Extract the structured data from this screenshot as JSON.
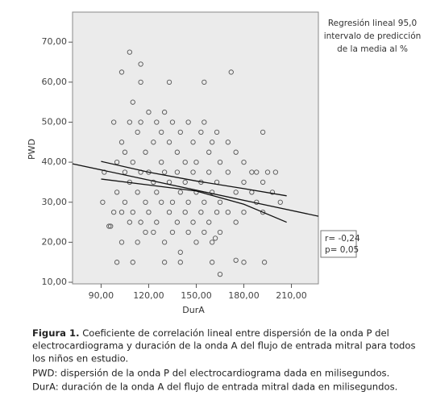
{
  "chart_data": {
    "type": "scatter",
    "xlabel": "DurA",
    "ylabel": "PWD",
    "xlim": [
      72,
      227
    ],
    "ylim": [
      9.6,
      77.5
    ],
    "xticks": [
      {
        "value": 90,
        "label": "90,00"
      },
      {
        "value": 120,
        "label": "120,00"
      },
      {
        "value": 150,
        "label": "150,00"
      },
      {
        "value": 180,
        "label": "180,00"
      },
      {
        "value": 210,
        "label": "210,00"
      }
    ],
    "yticks": [
      {
        "value": 10,
        "label": "10,00"
      },
      {
        "value": 20,
        "label": "20,00"
      },
      {
        "value": 30,
        "label": "30,00"
      },
      {
        "value": 40,
        "label": "40,00"
      },
      {
        "value": 50,
        "label": "50,00"
      },
      {
        "value": 60,
        "label": "60,00"
      },
      {
        "value": 70,
        "label": "70,00"
      }
    ],
    "legend_lines": [
      "Regresión lineal 95,0",
      "intervalo de predicción",
      "de la media al %"
    ],
    "annotation_lines": [
      "r= -0,24",
      "p= 0,05"
    ],
    "background": "#ebebeb",
    "series": [
      {
        "type": "scatter",
        "color": "#555555",
        "x": [
          108,
          115,
          115,
          103,
          133,
          155,
          172,
          192,
          180,
          193,
          165,
          175,
          162,
          160,
          130,
          140,
          100,
          110,
          91,
          95,
          96,
          92,
          98,
          98,
          100,
          100,
          103,
          103,
          103,
          105,
          105,
          105,
          108,
          108,
          108,
          110,
          110,
          110,
          113,
          113,
          113,
          115,
          115,
          115,
          118,
          118,
          118,
          120,
          120,
          120,
          123,
          123,
          123,
          125,
          125,
          125,
          128,
          128,
          128,
          130,
          130,
          130,
          133,
          133,
          133,
          135,
          135,
          135,
          138,
          138,
          138,
          140,
          140,
          140,
          143,
          143,
          143,
          145,
          145,
          145,
          148,
          148,
          148,
          150,
          150,
          150,
          153,
          153,
          153,
          155,
          155,
          155,
          158,
          158,
          158,
          160,
          160,
          160,
          163,
          163,
          163,
          165,
          165,
          165,
          170,
          170,
          170,
          175,
          175,
          175,
          180,
          180,
          180,
          185,
          185,
          188,
          188,
          192,
          192,
          195,
          198,
          200,
          203
        ],
        "values": [
          67.5,
          64.5,
          60,
          62.5,
          60,
          60,
          62.5,
          47.5,
          15,
          15,
          12,
          15.5,
          21,
          15,
          15,
          15,
          15,
          15,
          30,
          24,
          24,
          37.5,
          50,
          27.5,
          40,
          32.5,
          45,
          27.5,
          20,
          37.5,
          30,
          42.5,
          50,
          35,
          25,
          55,
          40,
          27.5,
          47.5,
          32.5,
          20,
          50,
          37.5,
          25,
          42.5,
          30,
          22.5,
          52.5,
          37.5,
          27.5,
          45,
          35,
          22.5,
          50,
          32.5,
          25,
          47.5,
          40,
          30,
          52.5,
          37.5,
          20,
          45,
          35,
          27.5,
          50,
          30,
          22.5,
          42.5,
          37.5,
          25,
          47.5,
          32.5,
          17.5,
          40,
          35,
          27.5,
          50,
          30,
          22.5,
          45,
          37.5,
          25,
          40,
          32.5,
          20,
          47.5,
          35,
          27.5,
          50,
          30,
          22.5,
          42.5,
          37.5,
          25,
          45,
          32.5,
          20,
          47.5,
          35,
          27.5,
          40,
          30,
          22.5,
          45,
          37.5,
          27.5,
          42.5,
          32.5,
          25,
          40,
          35,
          27.5,
          37.5,
          32.5,
          37.5,
          30,
          35,
          27.5,
          37.5,
          32.5,
          37.5,
          30
        ]
      },
      {
        "type": "line",
        "color": "#111111",
        "x": [
          72,
          227
        ],
        "values": [
          39.6,
          26.5
        ]
      },
      {
        "type": "line",
        "color": "#111111",
        "x": [
          90,
          120,
          150,
          180,
          207
        ],
        "values": [
          40.2,
          37.5,
          35.3,
          33.4,
          31.6
        ]
      },
      {
        "type": "line",
        "color": "#111111",
        "x": [
          90,
          120,
          150,
          180,
          207
        ],
        "values": [
          35.8,
          34.3,
          32.8,
          29.5,
          25.0
        ]
      }
    ]
  },
  "caption": {
    "label": "Figura 1.",
    "first_line": "Coeficiente de correlación lineal entre dispersión de la onda P del",
    "lines": [
      "electrocardiograma y duración de la onda A del flujo de entrada mitral para todos",
      "los niños en estudio.",
      "PWD: dispersión de la onda P del electrocardiograma dada en milisegundos.",
      "DurA: duración de la onda A del flujo de entrada mitral dada en milisegundos."
    ]
  }
}
